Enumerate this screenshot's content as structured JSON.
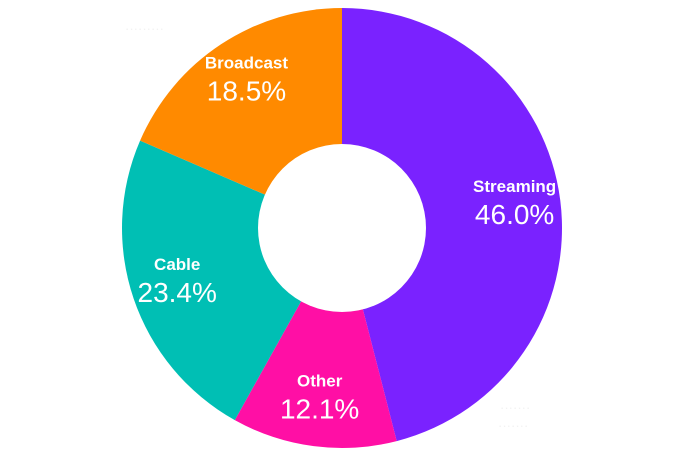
{
  "chart_data": {
    "type": "pie",
    "donut": true,
    "slices": [
      {
        "label": "Streaming",
        "value": 46.0,
        "display": "46.0%",
        "color": "#7a22ff"
      },
      {
        "label": "Other",
        "value": 12.1,
        "display": "12.1%",
        "color": "#ff0fa5"
      },
      {
        "label": "Cable",
        "value": 23.4,
        "display": "23.4%",
        "color": "#00bfb4"
      },
      {
        "label": "Broadcast",
        "value": 18.5,
        "display": "18.5%",
        "color": "#ff8a00"
      }
    ],
    "start_at": "top",
    "direction": "clockwise",
    "legend": "none"
  }
}
